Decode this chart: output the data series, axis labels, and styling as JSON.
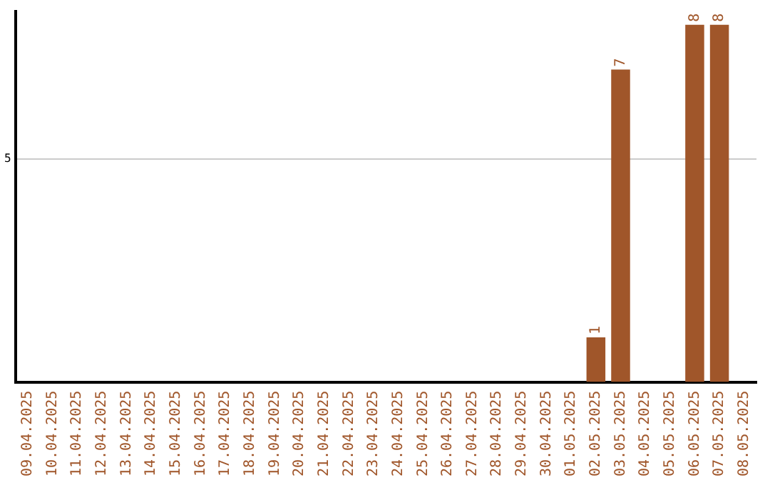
{
  "chart_data": {
    "type": "bar",
    "categories": [
      "09.04.2025",
      "10.04.2025",
      "11.04.2025",
      "12.04.2025",
      "13.04.2025",
      "14.04.2025",
      "15.04.2025",
      "16.04.2025",
      "17.04.2025",
      "18.04.2025",
      "19.04.2025",
      "20.04.2025",
      "21.04.2025",
      "22.04.2025",
      "23.04.2025",
      "24.04.2025",
      "25.04.2025",
      "26.04.2025",
      "27.04.2025",
      "28.04.2025",
      "29.04.2025",
      "30.04.2025",
      "01.05.2025",
      "02.05.2025",
      "03.05.2025",
      "04.05.2025",
      "05.05.2025",
      "06.05.2025",
      "07.05.2025",
      "08.05.2025"
    ],
    "values": [
      null,
      null,
      null,
      null,
      null,
      null,
      null,
      null,
      null,
      null,
      null,
      null,
      null,
      null,
      null,
      null,
      null,
      null,
      null,
      null,
      null,
      null,
      null,
      1,
      7,
      null,
      null,
      8,
      8,
      null
    ],
    "color": "#a0562a",
    "ylim": [
      0,
      8.3
    ],
    "yticks": [
      5
    ],
    "grid": "y",
    "data_labels": true,
    "legend": false
  }
}
